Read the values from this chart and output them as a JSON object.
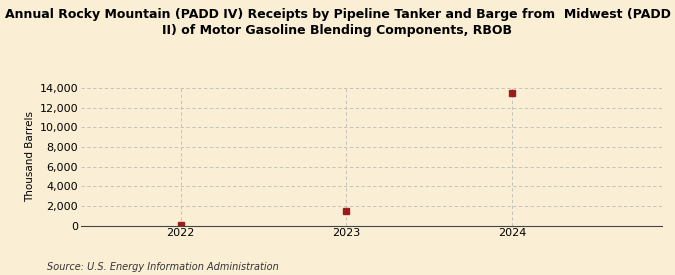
{
  "title_line1": "Annual Rocky Mountain (PADD IV) Receipts by Pipeline Tanker and Barge from  Midwest (PADD",
  "title_line2": "II) of Motor Gasoline Blending Components, RBOB",
  "ylabel": "Thousand Barrels",
  "source": "Source: U.S. Energy Information Administration",
  "x_values": [
    2022,
    2023,
    2024
  ],
  "y_values": [
    31,
    1474,
    13527
  ],
  "xlim": [
    2021.4,
    2024.9
  ],
  "ylim": [
    0,
    14000
  ],
  "yticks": [
    0,
    2000,
    4000,
    6000,
    8000,
    10000,
    12000,
    14000
  ],
  "xticks": [
    2022,
    2023,
    2024
  ],
  "marker_color": "#9b1c1c",
  "marker": "s",
  "marker_size": 4,
  "bg_color": "#faefd4",
  "grid_color": "#bbbbbb",
  "title_fontsize": 9.0,
  "label_fontsize": 7.5,
  "tick_fontsize": 8,
  "source_fontsize": 7.0
}
